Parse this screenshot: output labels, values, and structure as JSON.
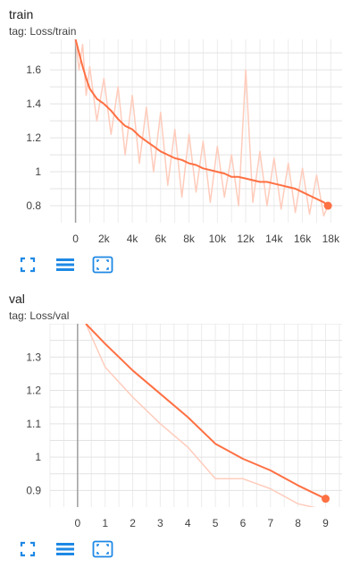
{
  "cards": [
    {
      "title": "train",
      "tag": "tag: Loss/train",
      "accent": "#ff7043",
      "faint": "#ffccbc",
      "chart_data": {
        "type": "line",
        "x_ticks": [
          0,
          2000,
          4000,
          6000,
          8000,
          10000,
          12000,
          14000,
          16000,
          18000
        ],
        "x_tick_labels": [
          "0",
          "2k",
          "4k",
          "6k",
          "8k",
          "10k",
          "12k",
          "14k",
          "16k",
          "18k"
        ],
        "y_ticks": [
          0.8,
          1,
          1.2,
          1.4,
          1.6
        ],
        "y_tick_labels": [
          "0.8",
          "1",
          "1.2",
          "1.4",
          "1.6"
        ],
        "xlim": [
          -1800,
          18800
        ],
        "ylim": [
          0.7,
          1.78
        ],
        "grid": true,
        "series": [
          {
            "role": "smoothed",
            "x": [
              0,
              250,
              500,
              750,
              1000,
              1500,
              2000,
              2500,
              3000,
              3500,
              4000,
              4500,
              5000,
              5500,
              6000,
              6500,
              7000,
              7500,
              8000,
              8500,
              9000,
              9500,
              10000,
              10500,
              11000,
              11500,
              12000,
              12500,
              13000,
              13500,
              14000,
              14500,
              15000,
              15500,
              16000,
              16500,
              17000,
              17500,
              17800
            ],
            "y": [
              1.78,
              1.7,
              1.62,
              1.55,
              1.49,
              1.43,
              1.4,
              1.36,
              1.31,
              1.27,
              1.25,
              1.21,
              1.18,
              1.15,
              1.12,
              1.1,
              1.08,
              1.07,
              1.05,
              1.04,
              1.02,
              1.01,
              1.0,
              0.99,
              0.97,
              0.97,
              0.96,
              0.95,
              0.94,
              0.94,
              0.93,
              0.92,
              0.91,
              0.9,
              0.88,
              0.86,
              0.84,
              0.82,
              0.8
            ]
          },
          {
            "role": "raw",
            "x": [
              0,
              250,
              500,
              750,
              1000,
              1500,
              2000,
              2500,
              3000,
              3500,
              4000,
              4500,
              5000,
              5500,
              6000,
              6500,
              7000,
              7500,
              8000,
              8500,
              9000,
              9500,
              10000,
              10500,
              11000,
              11500,
              12000,
              12500,
              13000,
              13500,
              14000,
              14500,
              15000,
              15500,
              16000,
              16500,
              17000,
              17500,
              17800
            ],
            "y": [
              1.78,
              1.6,
              1.75,
              1.45,
              1.62,
              1.3,
              1.55,
              1.22,
              1.5,
              1.1,
              1.45,
              1.05,
              1.38,
              1.0,
              1.35,
              0.92,
              1.25,
              0.85,
              1.22,
              0.88,
              1.18,
              0.82,
              1.15,
              0.85,
              1.1,
              0.8,
              1.6,
              0.82,
              1.12,
              0.8,
              1.08,
              0.78,
              1.05,
              0.76,
              1.02,
              0.75,
              0.98,
              0.74,
              0.8
            ]
          }
        ]
      }
    },
    {
      "title": "val",
      "tag": "tag: Loss/val",
      "accent": "#ff7043",
      "faint": "#ffccbc",
      "chart_data": {
        "type": "line",
        "x_ticks": [
          0,
          1,
          2,
          3,
          4,
          5,
          6,
          7,
          8,
          9
        ],
        "x_tick_labels": [
          "0",
          "1",
          "2",
          "3",
          "4",
          "5",
          "6",
          "7",
          "8",
          "9"
        ],
        "y_ticks": [
          0.9,
          1,
          1.1,
          1.2,
          1.3
        ],
        "y_tick_labels": [
          "0.9",
          "1",
          "1.1",
          "1.2",
          "1.3"
        ],
        "xlim": [
          -1,
          9.6
        ],
        "ylim": [
          0.85,
          1.4
        ],
        "grid": true,
        "series": [
          {
            "role": "smoothed",
            "x": [
              0.3,
              1,
              2,
              3,
              4,
              5,
              6,
              7,
              8,
              9
            ],
            "y": [
              1.4,
              1.34,
              1.26,
              1.19,
              1.12,
              1.04,
              0.995,
              0.96,
              0.915,
              0.875
            ]
          },
          {
            "role": "raw",
            "x": [
              0.3,
              1,
              2,
              3,
              4,
              5,
              6,
              7,
              8,
              8.8
            ],
            "y": [
              1.4,
              1.27,
              1.18,
              1.1,
              1.03,
              0.935,
              0.935,
              0.905,
              0.86,
              0.845
            ]
          }
        ]
      }
    }
  ]
}
